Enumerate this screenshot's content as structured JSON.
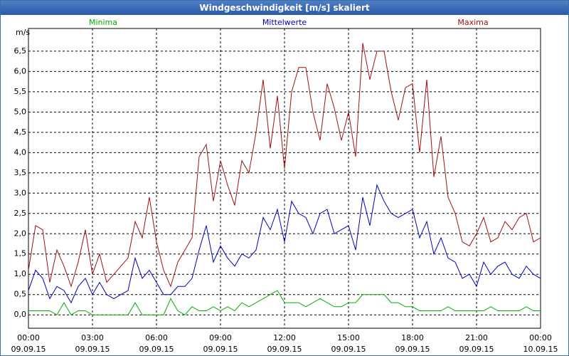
{
  "chart_data": {
    "type": "line",
    "title": "Windgeschwindigkeit [m/s] skaliert",
    "y_unit": "m/s",
    "x": [
      0,
      20,
      40,
      60,
      80,
      100,
      120,
      140,
      160,
      180,
      200,
      220,
      240,
      260,
      280,
      300,
      320,
      340,
      360,
      380,
      400,
      420,
      440,
      460,
      480,
      500,
      520,
      540,
      560,
      580,
      600,
      620,
      640,
      660,
      680,
      700,
      720,
      740,
      760,
      780,
      800,
      820,
      840,
      860,
      880,
      900,
      920,
      940,
      960,
      980,
      1000,
      1020,
      1040,
      1060,
      1080,
      1100,
      1120,
      1140,
      1160,
      1180,
      1200,
      1220,
      1240,
      1260,
      1280,
      1300,
      1320,
      1340,
      1360,
      1380,
      1400,
      1420,
      1440
    ],
    "series": [
      {
        "name": "Minima",
        "color": "#00b000",
        "values": [
          0.1,
          0.1,
          0.1,
          0.1,
          0.0,
          0.3,
          0.0,
          0.1,
          0.1,
          0.0,
          0.0,
          0.0,
          0.0,
          0.0,
          0.0,
          0.3,
          0.0,
          0.0,
          0.0,
          0.0,
          0.4,
          0.1,
          0.0,
          0.2,
          0.1,
          0.1,
          0.2,
          0.1,
          0.2,
          0.1,
          0.3,
          0.2,
          0.3,
          0.4,
          0.5,
          0.6,
          0.3,
          0.3,
          0.3,
          0.2,
          0.3,
          0.4,
          0.3,
          0.2,
          0.2,
          0.3,
          0.3,
          0.5,
          0.5,
          0.5,
          0.5,
          0.3,
          0.3,
          0.2,
          0.2,
          0.1,
          0.1,
          0.1,
          0.1,
          0.2,
          0.1,
          0.1,
          0.1,
          0.1,
          0.1,
          0.2,
          0.1,
          0.1,
          0.1,
          0.1,
          0.2,
          0.1,
          0.1
        ]
      },
      {
        "name": "Mittelwerte",
        "color": "#0000c0",
        "values": [
          0.6,
          1.1,
          0.9,
          0.4,
          0.7,
          0.6,
          0.3,
          0.7,
          0.9,
          0.5,
          0.8,
          0.5,
          0.4,
          0.5,
          0.6,
          1.4,
          0.9,
          1.1,
          0.8,
          0.5,
          0.5,
          0.7,
          0.7,
          0.9,
          1.6,
          2.2,
          1.3,
          1.7,
          1.4,
          1.2,
          1.5,
          1.4,
          1.6,
          2.4,
          2.1,
          2.6,
          1.8,
          2.8,
          2.5,
          2.4,
          2.0,
          2.5,
          2.6,
          2.0,
          2.1,
          2.2,
          1.6,
          2.9,
          2.2,
          3.2,
          2.8,
          2.5,
          2.4,
          2.5,
          2.6,
          1.9,
          2.3,
          1.5,
          1.9,
          1.4,
          1.3,
          0.9,
          1.0,
          0.7,
          1.3,
          1.0,
          1.2,
          1.3,
          1.0,
          0.9,
          1.2,
          1.0,
          0.9
        ]
      },
      {
        "name": "Maxima",
        "color": "#a01010",
        "values": [
          1.1,
          2.2,
          2.1,
          0.8,
          1.6,
          1.2,
          0.7,
          1.3,
          2.1,
          1.0,
          1.5,
          0.8,
          1.0,
          1.2,
          1.4,
          2.3,
          1.9,
          2.9,
          1.8,
          1.1,
          0.7,
          1.3,
          1.6,
          1.9,
          3.9,
          4.2,
          2.8,
          3.8,
          3.2,
          2.7,
          3.8,
          3.5,
          4.5,
          5.8,
          4.1,
          5.4,
          3.6,
          5.5,
          6.1,
          6.1,
          5.0,
          4.3,
          5.7,
          5.1,
          4.3,
          5.0,
          3.9,
          6.7,
          5.8,
          6.5,
          6.5,
          5.5,
          4.8,
          5.6,
          5.7,
          4.0,
          5.8,
          3.4,
          4.4,
          2.9,
          2.5,
          1.8,
          1.7,
          2.0,
          2.4,
          1.8,
          1.9,
          2.3,
          2.1,
          2.4,
          2.5,
          1.8,
          1.9
        ]
      }
    ],
    "xlim": [
      0,
      1440
    ],
    "xticks": [
      {
        "value": 0,
        "label": "00:00",
        "date": "09.09.15"
      },
      {
        "value": 180,
        "label": "03:00",
        "date": "09.09.15"
      },
      {
        "value": 360,
        "label": "06:00",
        "date": "09.09.15"
      },
      {
        "value": 540,
        "label": "09:00",
        "date": "09.09.15"
      },
      {
        "value": 720,
        "label": "12:00",
        "date": "09.09.15"
      },
      {
        "value": 900,
        "label": "15:00",
        "date": "09.09.15"
      },
      {
        "value": 1080,
        "label": "18:00",
        "date": "09.09.15"
      },
      {
        "value": 1260,
        "label": "21:00",
        "date": "09.09.15"
      },
      {
        "value": 1440,
        "label": "00:00",
        "date": "10.09.15"
      }
    ],
    "ylim": [
      -0.33,
      7.06
    ],
    "yticks": [
      {
        "value": 0,
        "label": "0,0"
      },
      {
        "value": 0.5,
        "label": "0,5"
      },
      {
        "value": 1,
        "label": "1,0"
      },
      {
        "value": 1.5,
        "label": "1,5"
      },
      {
        "value": 2,
        "label": "2,0"
      },
      {
        "value": 2.5,
        "label": "2,5"
      },
      {
        "value": 3,
        "label": "3,0"
      },
      {
        "value": 3.5,
        "label": "3,5"
      },
      {
        "value": 4,
        "label": "4,0"
      },
      {
        "value": 4.5,
        "label": "4,5"
      },
      {
        "value": 5,
        "label": "5,0"
      },
      {
        "value": 5.5,
        "label": "5,5"
      },
      {
        "value": 6,
        "label": "6,0"
      },
      {
        "value": 6.5,
        "label": "6,5"
      }
    ],
    "grid": true
  }
}
